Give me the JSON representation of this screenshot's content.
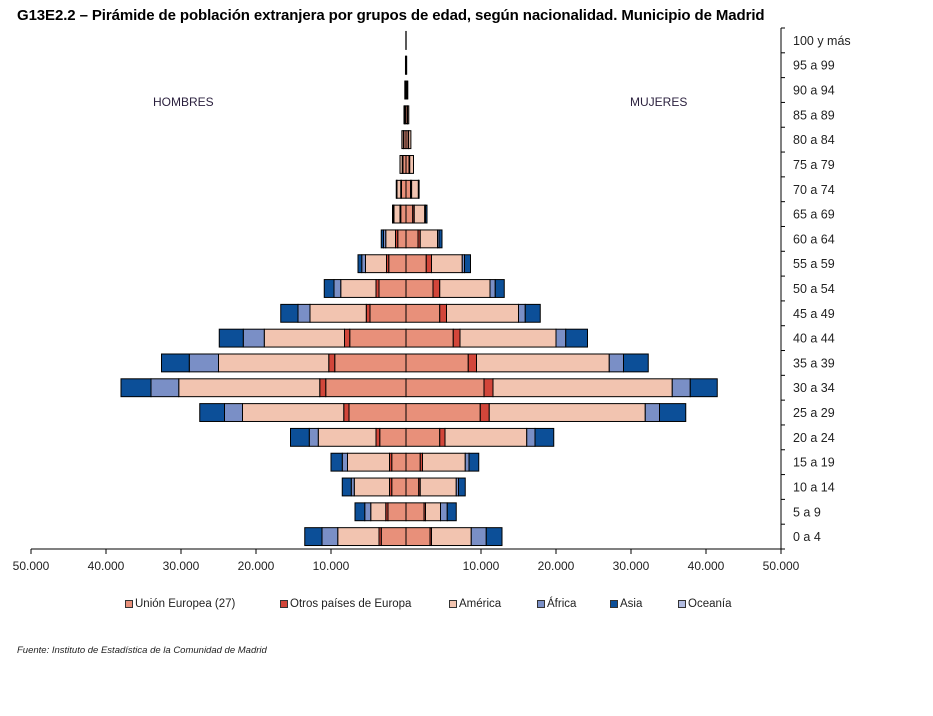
{
  "title": "G13E2.2 – Pirámide de población extranjera por grupos de edad, según nacionalidad. Municipio de Madrid",
  "source": "Fuente: Instituto de Estadística de la Comunidad de Madrid",
  "chart_data": {
    "type": "bar",
    "orientation": "horizontal",
    "stacked": true,
    "subtype": "population-pyramid",
    "title": "G13E2.2 – Pirámide de población extranjera por grupos de edad, según nacionalidad. Municipio de Madrid",
    "left_label": "HOMBRES",
    "right_label": "MUJERES",
    "xlim": [
      -50000,
      50000
    ],
    "x_ticks": [
      -50000,
      -40000,
      -30000,
      -20000,
      -10000,
      10000,
      20000,
      30000,
      40000,
      50000
    ],
    "x_tick_labels": [
      "50.000",
      "40.000",
      "30.000",
      "20.000",
      "10.000",
      "10.000",
      "20.000",
      "30.000",
      "40.000",
      "50.000"
    ],
    "categories": [
      "0 a 4",
      "5 a 9",
      "10 a 14",
      "15 a 19",
      "20 a 24",
      "25 a 29",
      "30 a 34",
      "35 a 39",
      "40 a 44",
      "45 a 49",
      "50 a 54",
      "55 a 59",
      "60 a 64",
      "65 a 69",
      "70 a 74",
      "75 a 79",
      "80 a 84",
      "85 a 89",
      "90 a 94",
      "95 a 99",
      "100 y más"
    ],
    "legend_position": "bottom",
    "grid": false,
    "series": [
      {
        "name": "Unión Europea (27)",
        "color": "#e8907a",
        "men": [
          3300,
          2400,
          1900,
          1900,
          3500,
          7600,
          10700,
          9500,
          7500,
          4800,
          3600,
          2300,
          1100,
          700,
          600,
          400,
          300,
          150,
          100,
          50,
          20
        ],
        "women": [
          3200,
          2400,
          1700,
          1900,
          4500,
          9900,
          10400,
          8300,
          6300,
          4500,
          3600,
          2700,
          1600,
          900,
          600,
          400,
          300,
          200,
          150,
          60,
          20
        ]
      },
      {
        "name": "Otros países de Europa",
        "color": "#d2463a",
        "men": [
          300,
          300,
          300,
          300,
          500,
          700,
          800,
          800,
          700,
          500,
          400,
          300,
          300,
          100,
          100,
          100,
          50,
          20,
          10,
          0,
          0
        ],
        "women": [
          200,
          200,
          200,
          300,
          700,
          1200,
          1200,
          1100,
          900,
          900,
          900,
          700,
          300,
          200,
          150,
          100,
          50,
          20,
          10,
          0,
          0
        ]
      },
      {
        "name": "América",
        "color": "#f2c4b0",
        "men": [
          5500,
          2000,
          4700,
          5600,
          7700,
          13500,
          18800,
          14700,
          10700,
          7500,
          4700,
          2800,
          1300,
          800,
          500,
          300,
          200,
          100,
          50,
          20,
          0
        ],
        "women": [
          5300,
          2000,
          4800,
          5700,
          10900,
          20800,
          23900,
          17700,
          12800,
          9600,
          6700,
          4100,
          2300,
          1400,
          900,
          500,
          300,
          150,
          80,
          30,
          0
        ]
      },
      {
        "name": "África",
        "color": "#7a8fc6",
        "men": [
          2100,
          800,
          400,
          700,
          1200,
          2400,
          3700,
          3900,
          2800,
          1600,
          900,
          500,
          300,
          100,
          50,
          0,
          0,
          0,
          0,
          0,
          0
        ],
        "women": [
          2000,
          900,
          300,
          500,
          1100,
          1900,
          2400,
          1900,
          1300,
          900,
          700,
          300,
          200,
          100,
          50,
          0,
          0,
          0,
          0,
          0,
          0
        ]
      },
      {
        "name": "Asia",
        "color": "#0c4f98",
        "men": [
          2300,
          1300,
          1200,
          1500,
          2500,
          3300,
          4000,
          3700,
          3200,
          2300,
          1300,
          500,
          300,
          100,
          50,
          0,
          0,
          0,
          0,
          0,
          0
        ],
        "women": [
          2100,
          1200,
          900,
          1300,
          2500,
          3500,
          3600,
          3300,
          2900,
          2000,
          1200,
          800,
          400,
          200,
          50,
          0,
          0,
          0,
          0,
          0,
          0
        ]
      },
      {
        "name": "Oceanía",
        "color": "#b3bde2",
        "men": [
          0,
          0,
          0,
          0,
          0,
          0,
          0,
          0,
          0,
          0,
          0,
          0,
          0,
          0,
          0,
          0,
          0,
          0,
          0,
          0,
          0
        ],
        "women": [
          0,
          0,
          0,
          0,
          0,
          0,
          0,
          0,
          0,
          0,
          0,
          0,
          0,
          0,
          0,
          0,
          0,
          0,
          0,
          0,
          0
        ]
      }
    ]
  }
}
